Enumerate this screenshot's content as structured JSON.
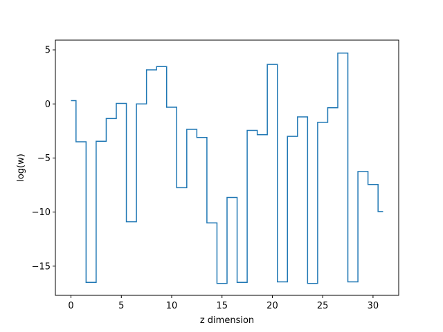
{
  "chart_data": {
    "type": "line",
    "drawstyle": "steps-mid",
    "title": "",
    "xlabel": "z dimension",
    "ylabel": "log(w)",
    "xlim": [
      -1.55,
      32.55
    ],
    "ylim": [
      -17.7,
      5.9
    ],
    "xticks": [
      0,
      5,
      10,
      15,
      20,
      25,
      30
    ],
    "xtick_labels": [
      "0",
      "5",
      "10",
      "15",
      "20",
      "25",
      "30"
    ],
    "yticks": [
      5,
      0,
      -5,
      -10,
      -15
    ],
    "ytick_labels": [
      "5",
      "0",
      "−5",
      "−10",
      "−15"
    ],
    "grid": false,
    "legend": "none",
    "series": [
      {
        "color": "#1f77b4",
        "x": [
          0,
          1,
          2,
          3,
          4,
          5,
          6,
          7,
          8,
          9,
          10,
          11,
          12,
          13,
          14,
          15,
          16,
          17,
          18,
          19,
          20,
          21,
          22,
          23,
          24,
          25,
          26,
          27,
          28,
          29,
          30,
          31
        ],
        "y": [
          0.3,
          -3.5,
          -16.5,
          -3.45,
          -1.35,
          0.05,
          -10.9,
          0.0,
          3.15,
          3.45,
          -0.3,
          -7.75,
          -2.35,
          -3.1,
          -11.0,
          -16.6,
          -8.65,
          -16.5,
          -2.45,
          -2.85,
          3.65,
          -16.45,
          -3.0,
          -1.2,
          -16.6,
          -1.7,
          -0.35,
          4.7,
          -16.45,
          -6.25,
          -7.45,
          -9.95
        ]
      }
    ]
  }
}
